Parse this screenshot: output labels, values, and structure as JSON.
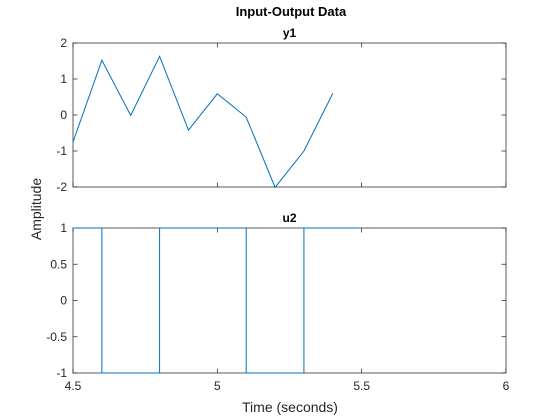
{
  "figure": {
    "title": "Input-Output Data",
    "xlabel": "Time (seconds)",
    "ylabel": "Amplitude",
    "line_color": "#0072bd",
    "axes_color": "#262626"
  },
  "chart_data": [
    {
      "type": "line",
      "title": "y1",
      "xlim": [
        4.5,
        6
      ],
      "ylim": [
        -2,
        2
      ],
      "xticks": [
        4.5,
        5,
        5.5,
        6
      ],
      "show_xtick_labels": false,
      "yticks": [
        -2,
        -1,
        0,
        1,
        2
      ],
      "ytick_labels": [
        "-2",
        "-1",
        "0",
        "1",
        "2"
      ],
      "grid": false,
      "x": [
        4.5,
        4.6,
        4.7,
        4.8,
        4.9,
        5.0,
        5.1,
        5.2,
        5.3,
        5.4
      ],
      "series": [
        {
          "values": [
            -0.75,
            1.52,
            -0.01,
            1.63,
            -0.42,
            0.59,
            -0.06,
            -2.01,
            -1.0,
            0.6
          ]
        }
      ]
    },
    {
      "type": "line",
      "step": true,
      "title": "u2",
      "xlim": [
        4.5,
        6
      ],
      "ylim": [
        -1,
        1
      ],
      "xticks": [
        4.5,
        5,
        5.5,
        6
      ],
      "xtick_labels": [
        "4.5",
        "5",
        "5.5",
        "6"
      ],
      "show_xtick_labels": true,
      "yticks": [
        -1,
        -0.5,
        0,
        0.5,
        1
      ],
      "ytick_labels": [
        "-1",
        "-0.5",
        "0",
        "0.5",
        "1"
      ],
      "grid": false,
      "x": [
        4.5,
        4.6,
        4.7,
        4.8,
        4.9,
        5.0,
        5.1,
        5.2,
        5.3,
        5.4
      ],
      "series": [
        {
          "values": [
            1,
            -1,
            -1,
            1,
            1,
            1,
            -1,
            -1,
            1,
            1
          ]
        }
      ]
    }
  ]
}
